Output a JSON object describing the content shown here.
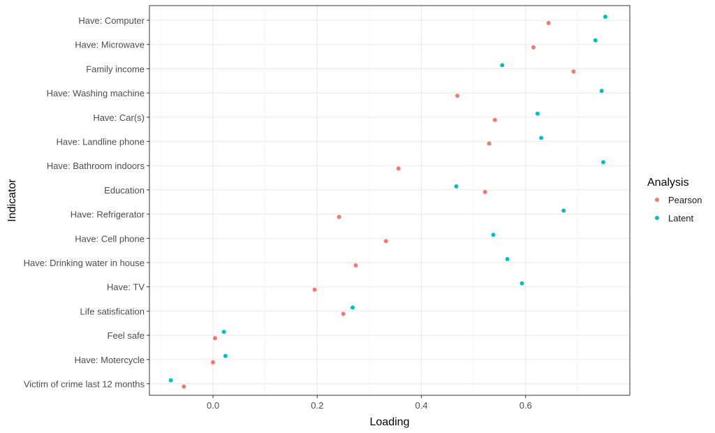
{
  "chart_data": {
    "type": "scatter",
    "xlabel": "Loading",
    "ylabel": "Indicator",
    "xlim": [
      -0.122,
      0.8
    ],
    "x_ticks": [
      0.0,
      0.2,
      0.4,
      0.6
    ],
    "x_tick_labels": [
      "0.0",
      "0.2",
      "0.4",
      "0.6"
    ],
    "grid": true,
    "legend": {
      "title": "Analysis",
      "position": "right"
    },
    "categories": [
      "Have: Computer",
      "Have: Microwave",
      "Family income",
      "Have: Washing machine",
      "Have: Car(s)",
      "Have: Landline phone",
      "Have: Bathroom indoors",
      "Education",
      "Have: Refrigerator",
      "Have: Cell phone",
      "Have: Drinking water in house",
      "Have: TV",
      "Life satisfication",
      "Feel safe",
      "Have: Motercycle",
      "Victim of crime last 12 months"
    ],
    "series": [
      {
        "name": "Pearson",
        "color": "#F8766D",
        "values": [
          0.644,
          0.615,
          0.692,
          0.469,
          0.541,
          0.53,
          0.356,
          0.522,
          0.242,
          0.332,
          0.274,
          0.195,
          0.25,
          0.004,
          0.0,
          -0.056
        ]
      },
      {
        "name": "Latent",
        "color": "#00BFC4",
        "values": [
          0.753,
          0.734,
          0.555,
          0.746,
          0.623,
          0.63,
          0.749,
          0.467,
          0.673,
          0.538,
          0.565,
          0.593,
          0.268,
          0.021,
          0.024,
          -0.081
        ]
      }
    ]
  }
}
